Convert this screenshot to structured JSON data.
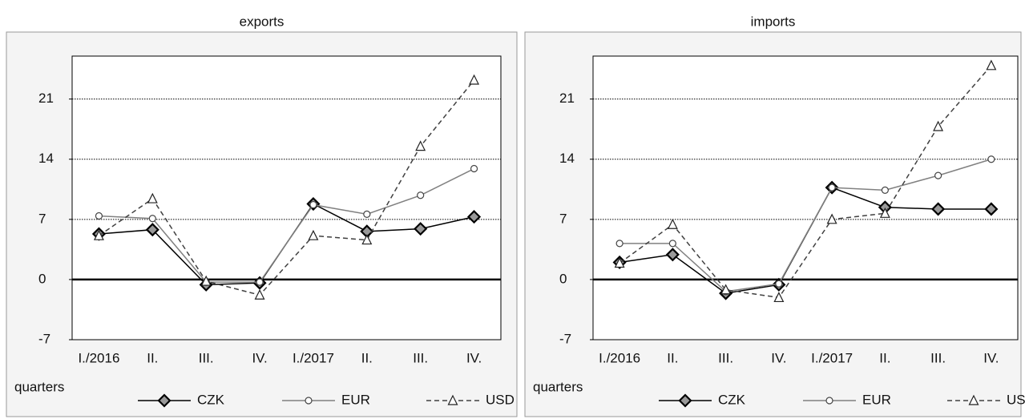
{
  "chart_data": [
    {
      "type": "line",
      "title": "exports",
      "x_label": "quarters",
      "categories": [
        "I./2016",
        "II.",
        "III.",
        "IV.",
        "I./2017",
        "II.",
        "III.",
        "IV."
      ],
      "series": [
        {
          "name": "CZK",
          "color": "#000000",
          "marker": "diamond",
          "dashed": false,
          "values": [
            5.3,
            5.8,
            -0.6,
            -0.4,
            8.8,
            5.6,
            5.9,
            7.3
          ]
        },
        {
          "name": "EUR",
          "color": "#808080",
          "marker": "circle",
          "dashed": false,
          "values": [
            7.4,
            7.1,
            -0.3,
            -0.3,
            8.7,
            7.6,
            9.8,
            12.9
          ]
        },
        {
          "name": "USD",
          "color": "#404040",
          "marker": "triangle",
          "dashed": true,
          "values": [
            5.1,
            9.4,
            -0.2,
            -1.8,
            5.1,
            4.6,
            15.5,
            23.2
          ]
        }
      ],
      "ylim": [
        -7,
        26
      ],
      "yticks": [
        -7,
        0,
        7,
        14,
        21
      ],
      "grid": true
    },
    {
      "type": "line",
      "title": "imports",
      "x_label": "quarters",
      "categories": [
        "I./2016",
        "II.",
        "III.",
        "IV.",
        "I./2017",
        "II.",
        "III.",
        "IV."
      ],
      "series": [
        {
          "name": "CZK",
          "color": "#000000",
          "marker": "diamond",
          "dashed": false,
          "values": [
            2.0,
            2.9,
            -1.6,
            -0.6,
            10.7,
            8.4,
            8.2,
            8.2
          ]
        },
        {
          "name": "EUR",
          "color": "#808080",
          "marker": "circle",
          "dashed": false,
          "values": [
            4.2,
            4.2,
            -1.4,
            -0.5,
            10.7,
            10.4,
            12.1,
            14.0
          ]
        },
        {
          "name": "USD",
          "color": "#404040",
          "marker": "triangle",
          "dashed": true,
          "values": [
            1.9,
            6.4,
            -1.2,
            -2.1,
            7.0,
            7.7,
            17.8,
            24.9
          ]
        }
      ],
      "ylim": [
        -7,
        26
      ],
      "yticks": [
        -7,
        0,
        7,
        14,
        21
      ],
      "grid": true
    }
  ]
}
